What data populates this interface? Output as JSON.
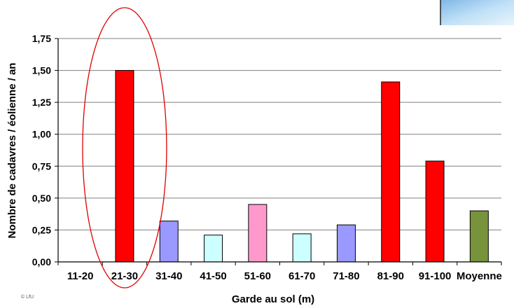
{
  "credit": "© LfU",
  "chart_data": {
    "type": "bar",
    "title": "",
    "xlabel": "Garde au sol (m)",
    "ylabel": "Nombre de cadavres / éolienne / an",
    "categories": [
      "11-20",
      "21-30",
      "31-40",
      "41-50",
      "51-60",
      "61-70",
      "71-80",
      "81-90",
      "91-100",
      "Moyenne"
    ],
    "values": [
      0,
      1.5,
      0.32,
      0.21,
      0.45,
      0.22,
      0.29,
      1.41,
      0.79,
      0.4
    ],
    "colors": [
      "#ff0000",
      "#ff0000",
      "#9999ff",
      "#ccffff",
      "#ff99cc",
      "#ccffff",
      "#9999ff",
      "#ff0000",
      "#ff0000",
      "#77933c"
    ],
    "ylim": [
      0,
      1.75
    ],
    "yticks": [
      "0,00",
      "0,25",
      "0,50",
      "0,75",
      "1,00",
      "1,25",
      "1,50",
      "1,75"
    ],
    "grid": true,
    "highlight": "21-30",
    "highlight_color": "#e00000"
  }
}
